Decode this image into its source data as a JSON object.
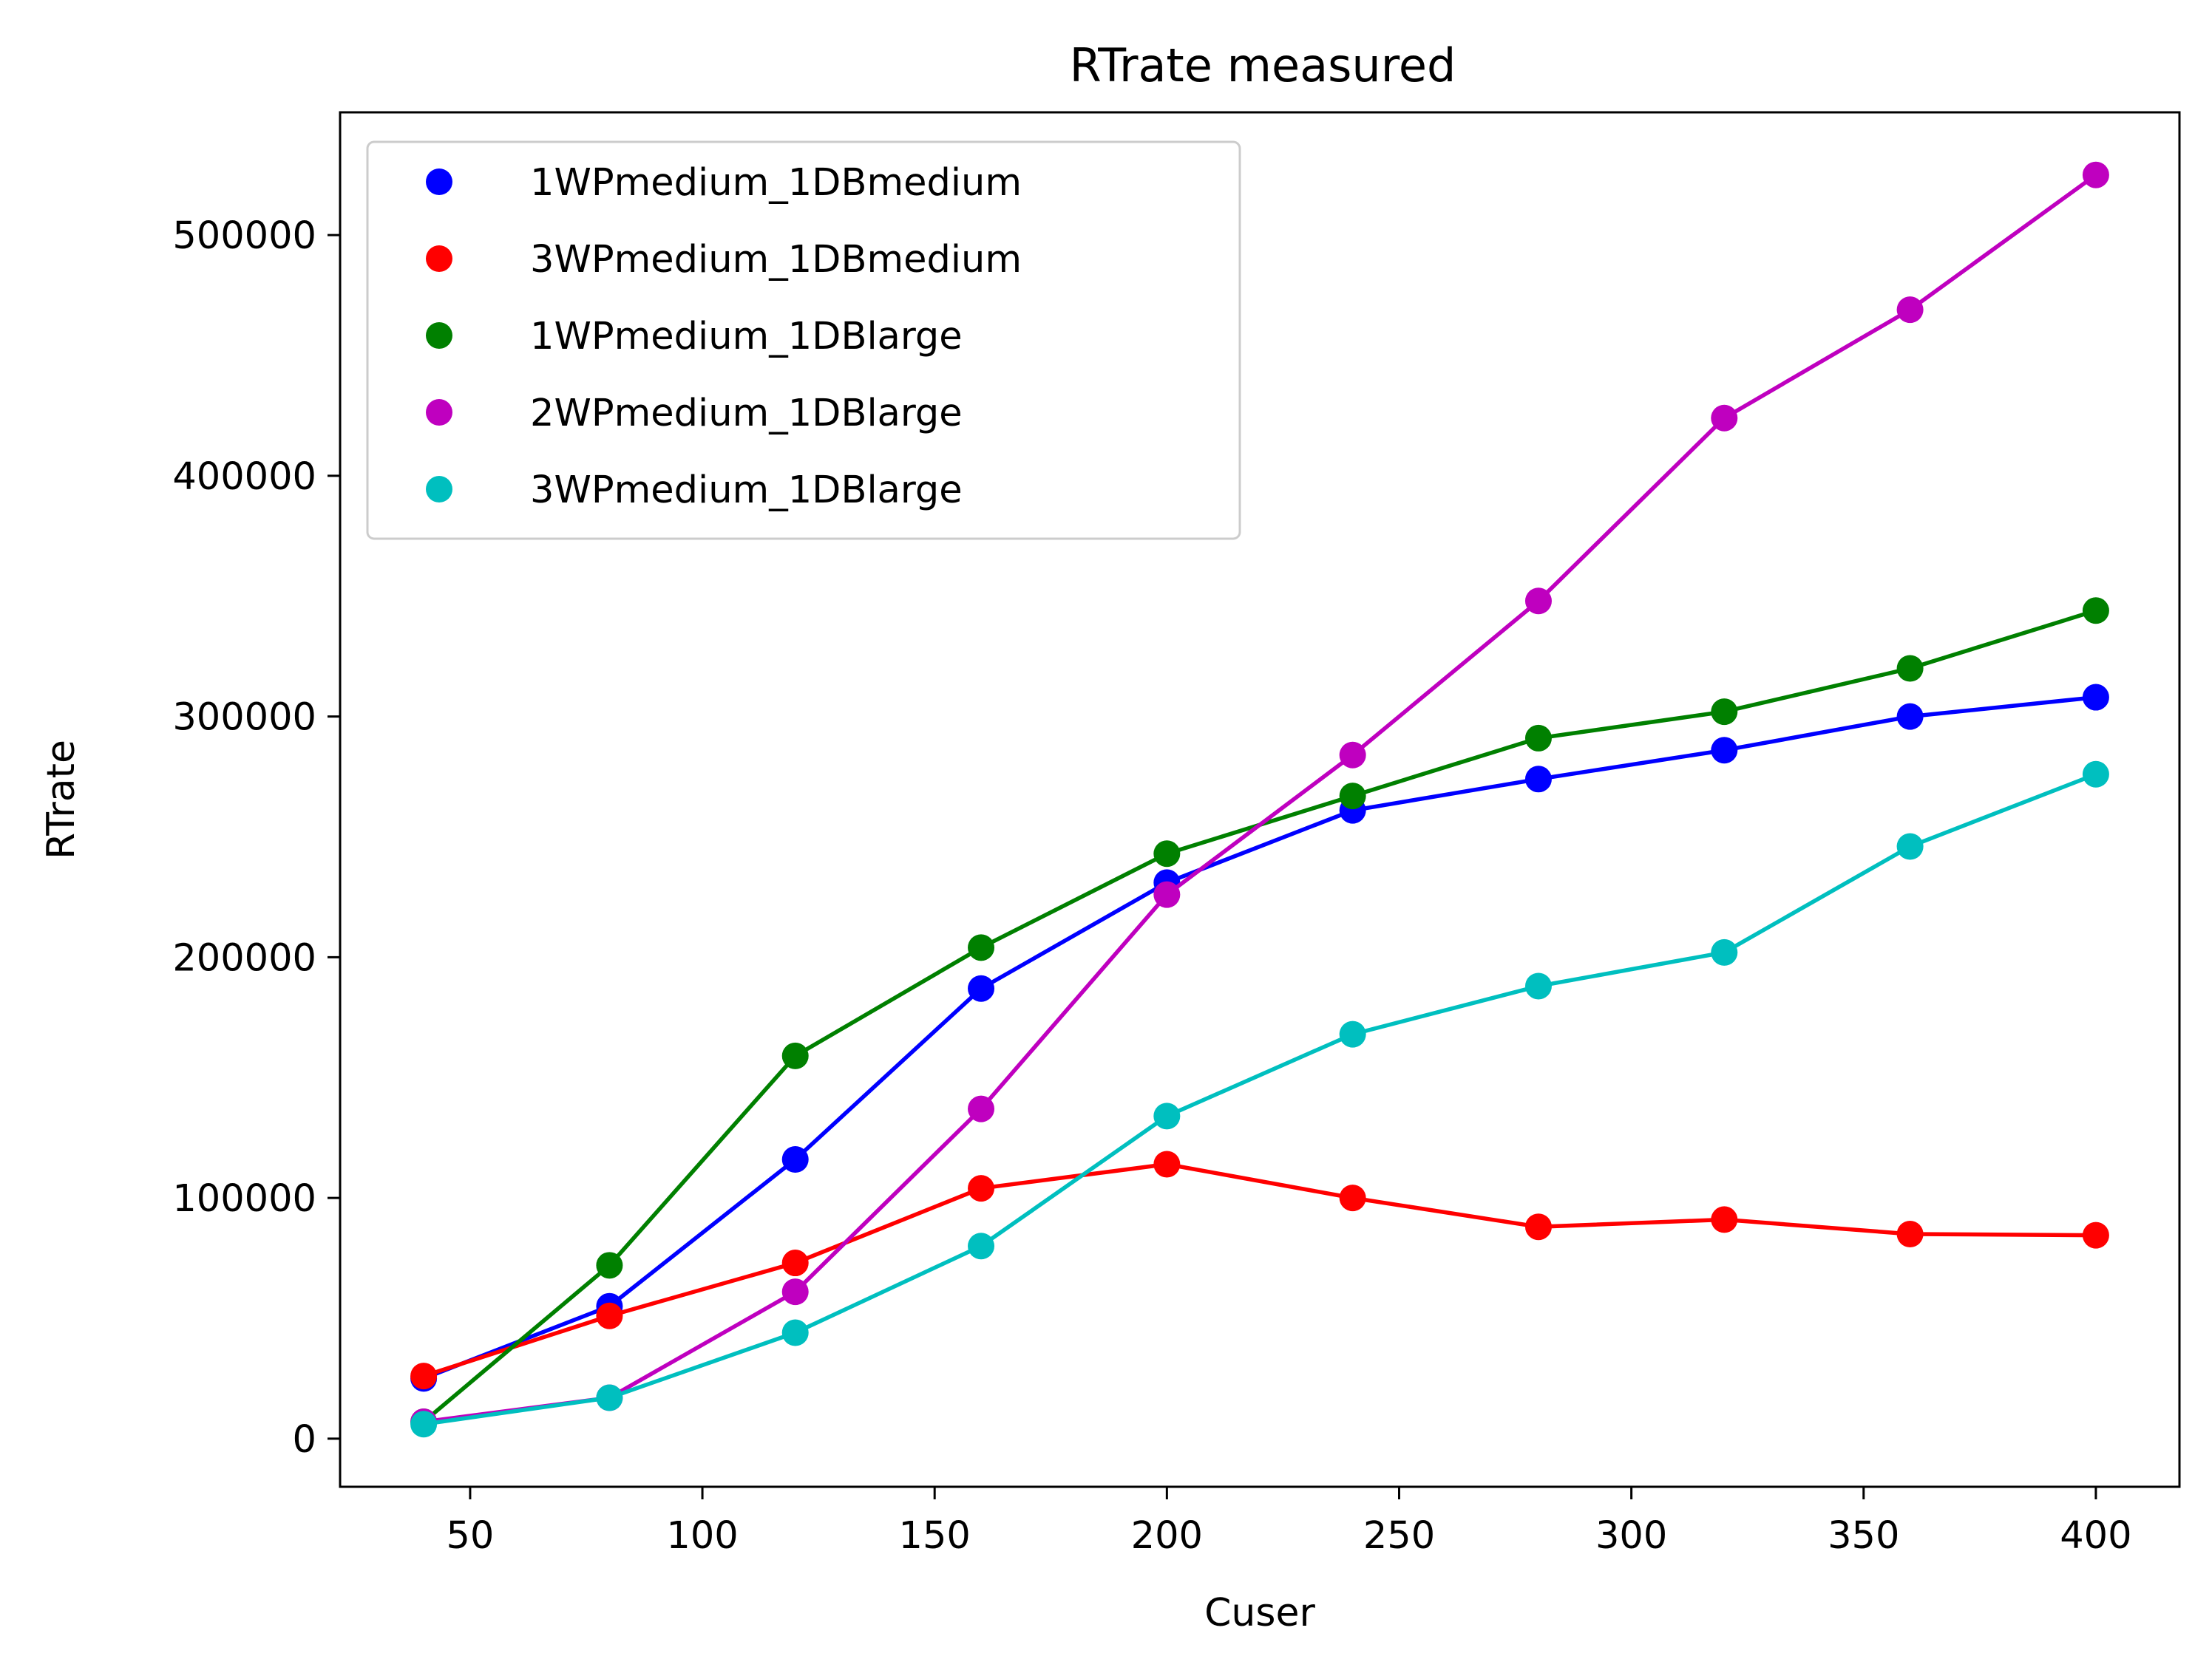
{
  "chart_data": {
    "type": "line",
    "title": "RTrate measured",
    "xlabel": "Cuser",
    "ylabel": "RTrate",
    "xlim": [
      22,
      418
    ],
    "ylim": [
      -20000,
      551000
    ],
    "x_ticks": [
      50,
      100,
      150,
      200,
      250,
      300,
      350,
      400
    ],
    "y_ticks": [
      0,
      100000,
      200000,
      300000,
      400000,
      500000
    ],
    "x_tick_labels": [
      "50",
      "100",
      "150",
      "200",
      "250",
      "300",
      "350",
      "400"
    ],
    "y_tick_labels": [
      "0",
      "100000",
      "200000",
      "300000",
      "400000",
      "500000"
    ],
    "grid": false,
    "legend_position": "upper-left",
    "x": [
      40,
      80,
      120,
      160,
      200,
      240,
      280,
      320,
      360,
      400
    ],
    "series": [
      {
        "name": "1WPmedium_1DBmedium",
        "color": "#0000ff",
        "values": [
          25000,
          55000,
          116000,
          187000,
          231000,
          261000,
          274000,
          286000,
          300000,
          308000
        ]
      },
      {
        "name": "3WPmedium_1DBmedium",
        "color": "#ff0000",
        "values": [
          26000,
          51000,
          73000,
          104000,
          114000,
          100000,
          88000,
          91000,
          85000,
          84500
        ]
      },
      {
        "name": "1WPmedium_1DBlarge",
        "color": "#008000",
        "values": [
          7000,
          72000,
          159000,
          204000,
          243000,
          267000,
          291000,
          302000,
          320000,
          344000
        ]
      },
      {
        "name": "2WPmedium_1DBlarge",
        "color": "#bf00bf",
        "values": [
          7000,
          17000,
          61000,
          137000,
          226000,
          284000,
          348000,
          424000,
          469000,
          525000
        ]
      },
      {
        "name": "3WPmedium_1DBlarge",
        "color": "#00bfbf",
        "values": [
          6000,
          17000,
          44000,
          80000,
          134000,
          168000,
          188000,
          202000,
          246000,
          276000
        ]
      }
    ]
  }
}
